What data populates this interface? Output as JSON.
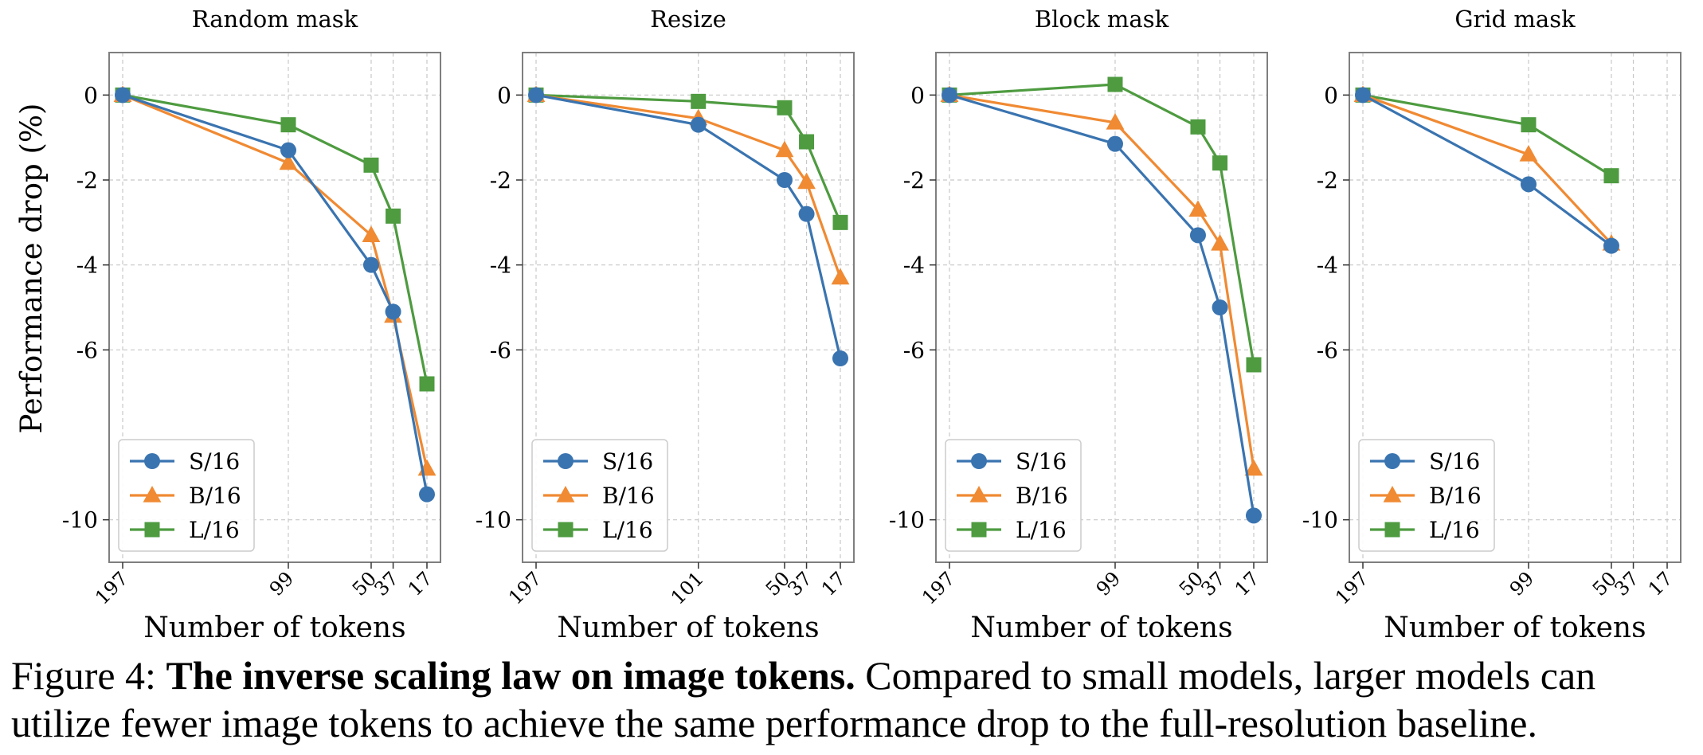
{
  "colors": {
    "s16": "#3a74b0",
    "b16": "#f08a33",
    "l16": "#4e9b40",
    "axis": "#7f7f7f",
    "grid": "#c8c8c8"
  },
  "shared_ylabel": "Performance drop (%)",
  "legend": [
    {
      "label": "S/16",
      "marker": "circle",
      "color_key": "s16"
    },
    {
      "label": "B/16",
      "marker": "triangle",
      "color_key": "b16"
    },
    {
      "label": "L/16",
      "marker": "square",
      "color_key": "l16"
    }
  ],
  "caption": {
    "prefix": "Figure 4: ",
    "bold": "The inverse scaling law on image tokens.",
    "rest": " Compared to small models, larger models can utilize fewer image tokens to achieve the same performance drop to the full-resolution baseline."
  },
  "chart_data": [
    {
      "type": "line",
      "title": "Random mask",
      "xlabel": "Number of tokens",
      "ylabel": "Performance drop (%)",
      "x_axis": "reversed",
      "xlim": [
        197,
        17
      ],
      "x_ticks": [
        197,
        99,
        50,
        37,
        17
      ],
      "ylim": [
        -11,
        1
      ],
      "y_ticks": [
        0,
        -2,
        -4,
        -6,
        -10
      ],
      "y_tick_labels": [
        "0",
        "-2",
        "-4",
        "-6",
        "-10"
      ],
      "grid": true,
      "legend_position": "lower-left",
      "series": [
        {
          "name": "S/16",
          "x": [
            197,
            99,
            50,
            37,
            17
          ],
          "y": [
            0,
            -1.3,
            -4.0,
            -5.1,
            -9.4
          ]
        },
        {
          "name": "B/16",
          "x": [
            197,
            99,
            50,
            37,
            17
          ],
          "y": [
            0,
            -1.6,
            -3.3,
            -5.2,
            -8.8
          ]
        },
        {
          "name": "L/16",
          "x": [
            197,
            99,
            50,
            37,
            17
          ],
          "y": [
            0,
            -0.7,
            -1.65,
            -2.85,
            -6.8
          ]
        }
      ]
    },
    {
      "type": "line",
      "title": "Resize",
      "xlabel": "Number of tokens",
      "x_axis": "reversed",
      "xlim": [
        197,
        17
      ],
      "x_ticks": [
        197,
        101,
        50,
        37,
        17
      ],
      "ylim": [
        -11,
        1
      ],
      "y_ticks": [
        0,
        -2,
        -4,
        -6,
        -10
      ],
      "y_tick_labels": [
        "0",
        "-2",
        "-4",
        "-6",
        "-10"
      ],
      "grid": true,
      "legend_position": "lower-left",
      "series": [
        {
          "name": "S/16",
          "x": [
            197,
            101,
            50,
            37,
            17
          ],
          "y": [
            0,
            -0.7,
            -2.0,
            -2.8,
            -6.2
          ]
        },
        {
          "name": "B/16",
          "x": [
            197,
            101,
            50,
            37,
            17
          ],
          "y": [
            0,
            -0.55,
            -1.3,
            -2.05,
            -4.3
          ]
        },
        {
          "name": "L/16",
          "x": [
            197,
            101,
            50,
            37,
            17
          ],
          "y": [
            0,
            -0.15,
            -0.3,
            -1.1,
            -3.0
          ]
        }
      ]
    },
    {
      "type": "line",
      "title": "Block mask",
      "xlabel": "Number of tokens",
      "x_axis": "reversed",
      "xlim": [
        197,
        17
      ],
      "x_ticks": [
        197,
        99,
        50,
        37,
        17
      ],
      "ylim": [
        -11,
        1
      ],
      "y_ticks": [
        0,
        -2,
        -4,
        -6,
        -10
      ],
      "y_tick_labels": [
        "0",
        "-2",
        "-4",
        "-6",
        "-10"
      ],
      "grid": true,
      "legend_position": "lower-left",
      "series": [
        {
          "name": "S/16",
          "x": [
            197,
            99,
            50,
            37,
            17
          ],
          "y": [
            0,
            -1.15,
            -3.3,
            -5.0,
            -9.9
          ]
        },
        {
          "name": "B/16",
          "x": [
            197,
            99,
            50,
            37,
            17
          ],
          "y": [
            0,
            -0.65,
            -2.7,
            -3.5,
            -8.8
          ]
        },
        {
          "name": "L/16",
          "x": [
            197,
            99,
            50,
            37,
            17
          ],
          "y": [
            0,
            0.25,
            -0.75,
            -1.6,
            -6.35
          ]
        }
      ]
    },
    {
      "type": "line",
      "title": "Grid mask",
      "xlabel": "Number of tokens",
      "x_axis": "reversed",
      "xlim": [
        197,
        17
      ],
      "x_ticks": [
        197,
        99,
        50,
        37,
        17
      ],
      "ylim": [
        -11,
        1
      ],
      "y_ticks": [
        0,
        -2,
        -4,
        -6,
        -10
      ],
      "y_tick_labels": [
        "0",
        "-2",
        "-4",
        "-6",
        "-10"
      ],
      "grid": true,
      "legend_position": "lower-left",
      "series": [
        {
          "name": "S/16",
          "x": [
            197,
            99,
            50
          ],
          "y": [
            0,
            -2.1,
            -3.55
          ]
        },
        {
          "name": "B/16",
          "x": [
            197,
            99,
            50
          ],
          "y": [
            0,
            -1.4,
            -3.5
          ]
        },
        {
          "name": "L/16",
          "x": [
            197,
            99,
            50
          ],
          "y": [
            0,
            -0.7,
            -1.9
          ]
        }
      ]
    }
  ]
}
